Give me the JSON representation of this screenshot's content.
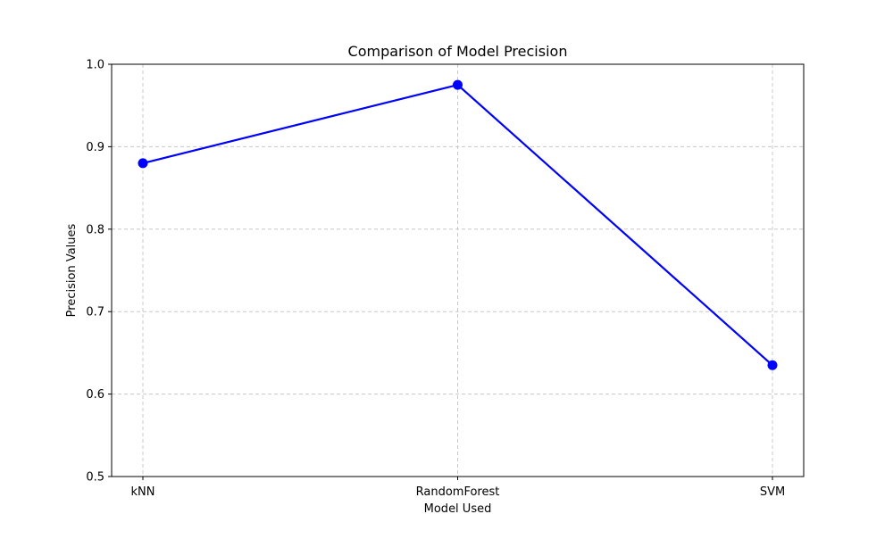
{
  "chart_data": {
    "type": "line",
    "title": "Comparison of Model Precision",
    "xlabel": "Model Used",
    "ylabel": "Precision Values",
    "categories": [
      "kNN",
      "RandomForest",
      "SVM"
    ],
    "series": [
      {
        "values": [
          0.88,
          0.975,
          0.635
        ],
        "color": "#0000ff",
        "marker": "circle"
      }
    ],
    "ylim": [
      0.5,
      1.0
    ],
    "yticks": [
      "0.5",
      "0.6",
      "0.7",
      "0.8",
      "0.9",
      "1.0"
    ],
    "grid": true,
    "grid_style": "dashed",
    "grid_color": "#c8c8c8",
    "legend": "none"
  }
}
